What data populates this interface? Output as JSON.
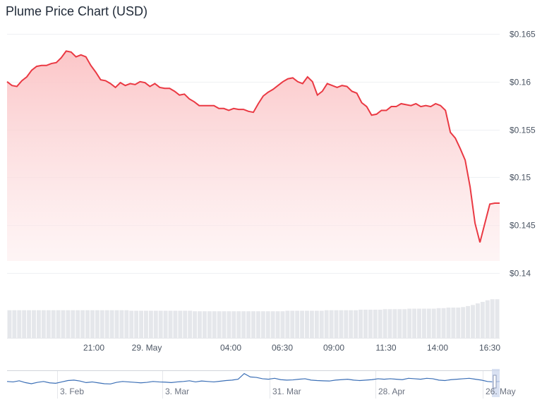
{
  "chart_data": {
    "type": "area",
    "title": "Plume Price Chart (USD)",
    "xlabel": "",
    "ylabel": "",
    "ylim": [
      0.14,
      0.165
    ],
    "y_ticks": [
      0.14,
      0.145,
      0.15,
      0.155,
      0.16,
      0.165
    ],
    "y_tick_labels": [
      "$0.14",
      "$0.145",
      "$0.15",
      "$0.155",
      "$0.16",
      "$0.165"
    ],
    "x_tick_labels": [
      "21:00",
      "29. May",
      "04:00",
      "06:30",
      "09:00",
      "11:30",
      "14:00",
      "16:30"
    ],
    "grid": true,
    "colors": {
      "line": "#ea3943",
      "area_top": "#fbc3c5",
      "volume": "#e5e7eb",
      "navigator_line": "#3b6fb6"
    },
    "series": [
      {
        "values": [
          0.16,
          0.1596,
          0.1595,
          0.1601,
          0.1605,
          0.1612,
          0.1616,
          0.1617,
          0.1617,
          0.1619,
          0.162,
          0.1625,
          0.1632,
          0.1631,
          0.1626,
          0.1628,
          0.1626,
          0.1617,
          0.161,
          0.1602,
          0.1601,
          0.1598,
          0.1594,
          0.1599,
          0.1596,
          0.1598,
          0.1597,
          0.16,
          0.1599,
          0.1595,
          0.1598,
          0.1594,
          0.1593,
          0.1593,
          0.159,
          0.1586,
          0.1587,
          0.1582,
          0.1579,
          0.1575,
          0.1575,
          0.1575,
          0.1575,
          0.1572,
          0.1572,
          0.157,
          0.1572,
          0.1571,
          0.1571,
          0.1569,
          0.1568,
          0.1577,
          0.1585,
          0.1589,
          0.1592,
          0.1596,
          0.16,
          0.1603,
          0.1604,
          0.16,
          0.1598,
          0.1605,
          0.16,
          0.1586,
          0.159,
          0.1598,
          0.1596,
          0.1594,
          0.1596,
          0.1595,
          0.159,
          0.1588,
          0.1578,
          0.1574,
          0.1565,
          0.1566,
          0.157,
          0.157,
          0.1574,
          0.1574,
          0.1577,
          0.1576,
          0.1575,
          0.1577,
          0.1574,
          0.1575,
          0.1574,
          0.1577,
          0.1575,
          0.157,
          0.1547,
          0.1541,
          0.153,
          0.1518,
          0.149,
          0.1452,
          0.1432,
          0.1452,
          0.1472,
          0.1473,
          0.1473
        ]
      }
    ],
    "volume": [
      0.53,
      0.53,
      0.53,
      0.53,
      0.53,
      0.53,
      0.53,
      0.53,
      0.53,
      0.53,
      0.53,
      0.53,
      0.53,
      0.53,
      0.53,
      0.53,
      0.53,
      0.53,
      0.53,
      0.53,
      0.53,
      0.53,
      0.53,
      0.53,
      0.53,
      0.52,
      0.52,
      0.52,
      0.52,
      0.52,
      0.52,
      0.52,
      0.52,
      0.52,
      0.52,
      0.52,
      0.52,
      0.52,
      0.51,
      0.51,
      0.51,
      0.51,
      0.51,
      0.51,
      0.51,
      0.51,
      0.51,
      0.51,
      0.51,
      0.51,
      0.51,
      0.51,
      0.51,
      0.51,
      0.51,
      0.51,
      0.51,
      0.52,
      0.52,
      0.52,
      0.52,
      0.52,
      0.52,
      0.52,
      0.52,
      0.53,
      0.53,
      0.53,
      0.53,
      0.53,
      0.53,
      0.53,
      0.54,
      0.54,
      0.54,
      0.54,
      0.54,
      0.55,
      0.55,
      0.55,
      0.55,
      0.55,
      0.56,
      0.56,
      0.56,
      0.56,
      0.56,
      0.56,
      0.57,
      0.57,
      0.58,
      0.58,
      0.58,
      0.59,
      0.61,
      0.63,
      0.66,
      0.69,
      0.72,
      0.74,
      0.74
    ],
    "navigator": {
      "x_tick_labels": [
        "3. Feb",
        "3. Mar",
        "31. Mar",
        "28. Apr",
        "26. May"
      ],
      "values": [
        0.6,
        0.58,
        0.63,
        0.55,
        0.5,
        0.56,
        0.6,
        0.54,
        0.52,
        0.58,
        0.64,
        0.66,
        0.62,
        0.55,
        0.58,
        0.54,
        0.5,
        0.49,
        0.56,
        0.6,
        0.58,
        0.56,
        0.54,
        0.56,
        0.6,
        0.58,
        0.57,
        0.55,
        0.58,
        0.6,
        0.63,
        0.58,
        0.62,
        0.6,
        0.58,
        0.61,
        0.64,
        0.66,
        0.7,
        0.95,
        0.8,
        0.78,
        0.72,
        0.7,
        0.74,
        0.68,
        0.66,
        0.67,
        0.7,
        0.72,
        0.66,
        0.64,
        0.63,
        0.62,
        0.66,
        0.68,
        0.7,
        0.66,
        0.64,
        0.66,
        0.68,
        0.72,
        0.7,
        0.72,
        0.7,
        0.68,
        0.74,
        0.72,
        0.7,
        0.74,
        0.72,
        0.66,
        0.64,
        0.68,
        0.7,
        0.72,
        0.74,
        0.7,
        0.66,
        0.6,
        0.58,
        0.6
      ]
    }
  }
}
